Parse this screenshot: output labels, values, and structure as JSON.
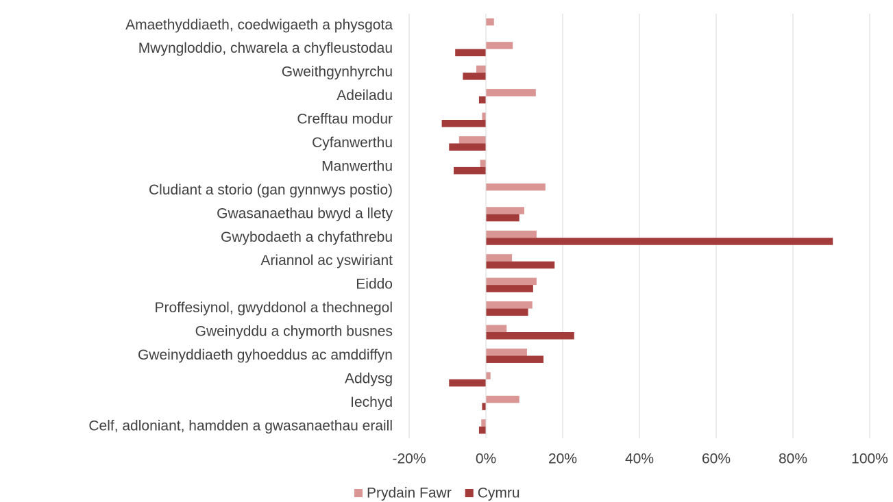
{
  "chart_data": {
    "type": "hbar",
    "categories": [
      "Amaethyddiaeth, coedwigaeth a physgota",
      "Mwyngloddio, chwarela a chyfleustodau",
      "Gweithgynhyrchu",
      "Adeiladu",
      "Crefftau modur",
      "Cyfanwerthu",
      "Manwerthu",
      "Cludiant a storio (gan gynnwys postio)",
      "Gwasanaethau bwyd a llety",
      "Gwybodaeth a chyfathrebu",
      "Ariannol ac yswiriant",
      "Eiddo",
      "Proffesiynol, gwyddonol a thechnegol",
      "Gweinyddu a chymorth busnes",
      "Gweinyddiaeth gyhoeddus ac amddiffyn",
      "Addysg",
      "Iechyd",
      "Celf, adloniant, hamdden a gwasanaethau eraill"
    ],
    "series": [
      {
        "name": "Prydain Fawr",
        "color": "#d99694",
        "values": [
          2.1,
          7,
          -2.5,
          13,
          -1,
          -7,
          -1.5,
          15.5,
          10,
          13.2,
          6.8,
          13.2,
          12.1,
          5.4,
          10.7,
          1.2,
          8.7,
          -1.2
        ]
      },
      {
        "name": "Cymru",
        "color": "#a33b3a",
        "values": [
          0,
          -8,
          -6,
          -1.8,
          -11.5,
          -9.6,
          -8.4,
          0,
          8.7,
          90.4,
          17.9,
          12.3,
          11,
          23,
          15,
          -9.6,
          -1,
          -1.8
        ]
      }
    ],
    "xlim": [
      -20,
      100
    ],
    "xticks": [
      {
        "value": -20,
        "label": "-20%"
      },
      {
        "value": 0,
        "label": "0%"
      },
      {
        "value": 20,
        "label": "20%"
      },
      {
        "value": 40,
        "label": "40%"
      },
      {
        "value": 60,
        "label": "60%"
      },
      {
        "value": 80,
        "label": "80%"
      },
      {
        "value": 100,
        "label": "100%"
      }
    ],
    "grid": true,
    "legend": "bottom"
  }
}
